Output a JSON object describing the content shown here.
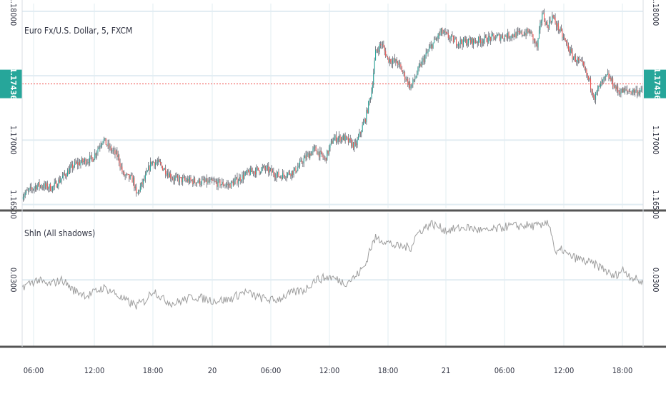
{
  "symbol_title": "Euro Fx/U.S. Dollar, 5, FXCM",
  "indicator_title": "Shln (All shadows)",
  "colors": {
    "up": "#26a69a",
    "down": "#ef5350",
    "wick": "#5d606b",
    "price_line": "#ef5350",
    "price_badge": "#26a69a",
    "indicator_line": "#9e9e9e",
    "grid": "#e1ecf2",
    "divider": "#555555"
  },
  "chart_data": [
    {
      "type": "candlestick",
      "title": "Euro Fx/U.S. Dollar, 5, FXCM",
      "y_ticks": [
        "1.18000",
        "1.17000",
        "1.16500"
      ],
      "ylim": [
        1.1647,
        1.1806
      ],
      "last_price": "1.17436",
      "x_ticks": [
        "06:00",
        "12:00",
        "18:00",
        "20",
        "06:00",
        "12:00",
        "18:00",
        "21",
        "06:00",
        "12:00",
        "18:00"
      ],
      "close_path": [
        [
          0,
          1.1657
        ],
        [
          15,
          1.1665
        ],
        [
          30,
          1.1663
        ],
        [
          52,
          1.1681
        ],
        [
          70,
          1.1686
        ],
        [
          80,
          1.1701
        ],
        [
          85,
          1.1695
        ],
        [
          95,
          1.1687
        ],
        [
          100,
          1.1673
        ],
        [
          110,
          1.1669
        ],
        [
          113,
          1.1657
        ],
        [
          122,
          1.1671
        ],
        [
          128,
          1.1683
        ],
        [
          135,
          1.1682
        ],
        [
          150,
          1.167
        ],
        [
          170,
          1.1668
        ],
        [
          190,
          1.1667
        ],
        [
          205,
          1.1665
        ],
        [
          225,
          1.1675
        ],
        [
          240,
          1.1678
        ],
        [
          255,
          1.1672
        ],
        [
          270,
          1.1676
        ],
        [
          280,
          1.1686
        ],
        [
          290,
          1.1693
        ],
        [
          300,
          1.1685
        ],
        [
          308,
          1.1701
        ],
        [
          318,
          1.1702
        ],
        [
          330,
          1.1695
        ],
        [
          340,
          1.1717
        ],
        [
          346,
          1.1738
        ],
        [
          350,
          1.1768
        ],
        [
          356,
          1.1775
        ],
        [
          362,
          1.1763
        ],
        [
          372,
          1.176
        ],
        [
          380,
          1.1748
        ],
        [
          385,
          1.1741
        ],
        [
          395,
          1.1759
        ],
        [
          405,
          1.1773
        ],
        [
          415,
          1.1784
        ],
        [
          430,
          1.1776
        ],
        [
          450,
          1.1777
        ],
        [
          470,
          1.178
        ],
        [
          490,
          1.1782
        ],
        [
          503,
          1.1784
        ],
        [
          510,
          1.1772
        ],
        [
          515,
          1.1799
        ],
        [
          520,
          1.1788
        ],
        [
          525,
          1.1796
        ],
        [
          535,
          1.1781
        ],
        [
          545,
          1.1765
        ],
        [
          555,
          1.1758
        ],
        [
          562,
          1.1745
        ],
        [
          567,
          1.1733
        ],
        [
          572,
          1.1742
        ],
        [
          580,
          1.175
        ],
        [
          590,
          1.1738
        ],
        [
          600,
          1.1738
        ]
      ]
    },
    {
      "type": "line",
      "title": "Shln (All shadows)",
      "y_ticks": [
        "0.0300"
      ],
      "ylim": [
        0.0233,
        0.0368
      ],
      "reference_value": 0.03,
      "path": [
        [
          0,
          0.0293
        ],
        [
          15,
          0.03
        ],
        [
          25,
          0.0295
        ],
        [
          40,
          0.03
        ],
        [
          50,
          0.029
        ],
        [
          65,
          0.0284
        ],
        [
          80,
          0.0292
        ],
        [
          90,
          0.0288
        ],
        [
          100,
          0.028
        ],
        [
          113,
          0.0274
        ],
        [
          122,
          0.0279
        ],
        [
          130,
          0.029
        ],
        [
          140,
          0.028
        ],
        [
          150,
          0.0276
        ],
        [
          170,
          0.0283
        ],
        [
          190,
          0.0279
        ],
        [
          205,
          0.028
        ],
        [
          220,
          0.0288
        ],
        [
          235,
          0.0282
        ],
        [
          250,
          0.0279
        ],
        [
          265,
          0.0286
        ],
        [
          280,
          0.029
        ],
        [
          290,
          0.03
        ],
        [
          305,
          0.0303
        ],
        [
          320,
          0.0297
        ],
        [
          330,
          0.0303
        ],
        [
          340,
          0.0315
        ],
        [
          344,
          0.033
        ],
        [
          350,
          0.0342
        ],
        [
          358,
          0.034
        ],
        [
          370,
          0.0334
        ],
        [
          385,
          0.0333
        ],
        [
          390,
          0.0345
        ],
        [
          395,
          0.035
        ],
        [
          405,
          0.0357
        ],
        [
          420,
          0.035
        ],
        [
          440,
          0.0353
        ],
        [
          460,
          0.0349
        ],
        [
          480,
          0.0354
        ],
        [
          500,
          0.0355
        ],
        [
          515,
          0.0354
        ],
        [
          520,
          0.0361
        ],
        [
          525,
          0.0345
        ],
        [
          528,
          0.0325
        ],
        [
          535,
          0.0331
        ],
        [
          540,
          0.0325
        ],
        [
          560,
          0.0318
        ],
        [
          575,
          0.0312
        ],
        [
          585,
          0.0303
        ],
        [
          595,
          0.031
        ],
        [
          605,
          0.0302
        ],
        [
          615,
          0.0297
        ]
      ]
    }
  ]
}
